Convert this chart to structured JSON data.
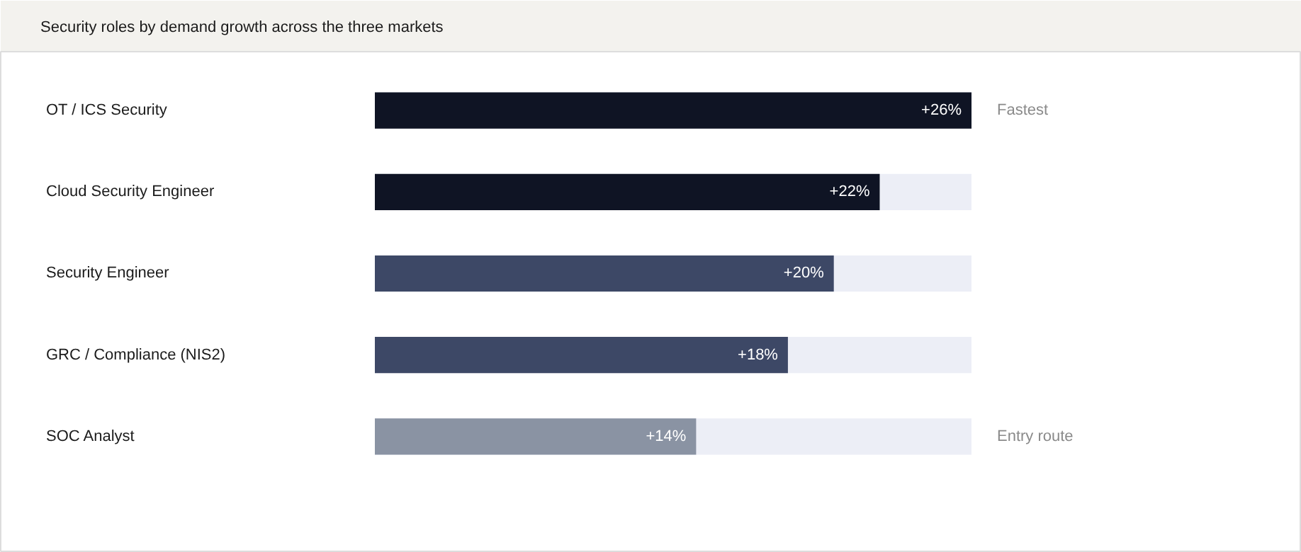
{
  "chart_data": {
    "type": "bar",
    "orientation": "horizontal",
    "title": "Security roles by demand growth across the three markets",
    "categories": [
      "OT / ICS Security",
      "Cloud Security Engineer",
      "Security Engineer",
      "GRC / Compliance (NIS2)",
      "SOC Analyst"
    ],
    "values": [
      26,
      22,
      20,
      18,
      14
    ],
    "colors": [
      "#0f1424",
      "#0f1424",
      "#3d4866",
      "#3d4866",
      "#8a93a3"
    ],
    "value_labels": [
      "+26%",
      "+22%",
      "+20%",
      "+18%",
      "+14%"
    ],
    "xlim": [
      0,
      26
    ],
    "grid": false,
    "annotations": [
      "Fastest",
      "Entry route"
    ]
  }
}
